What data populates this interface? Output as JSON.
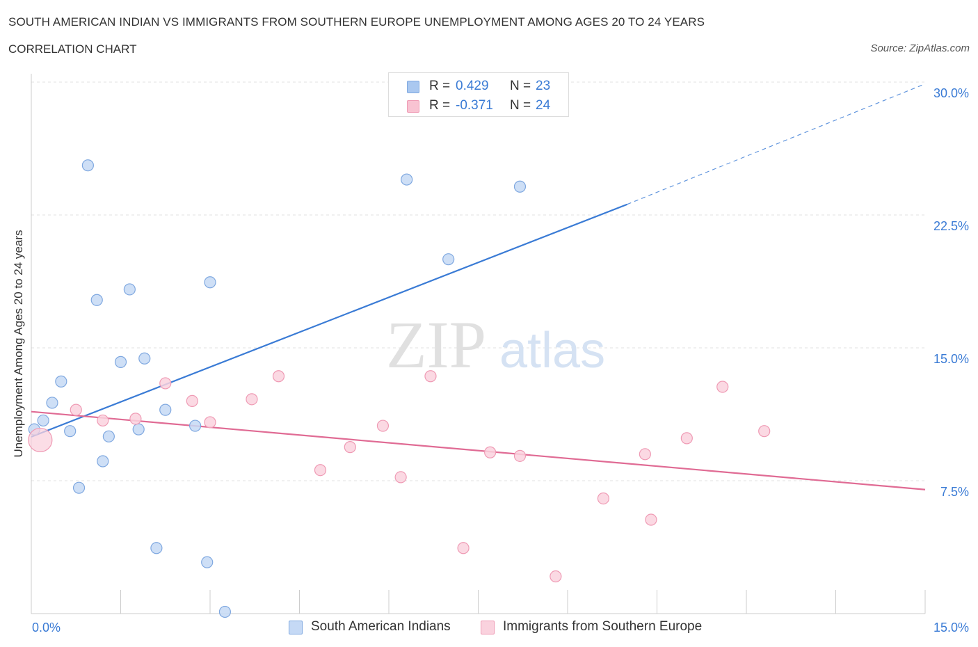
{
  "header": {
    "title": "SOUTH AMERICAN INDIAN VS IMMIGRANTS FROM SOUTHERN EUROPE UNEMPLOYMENT AMONG AGES 20 TO 24 YEARS",
    "subtitle": "CORRELATION CHART",
    "source": "Source: ZipAtlas.com"
  },
  "legend": {
    "rows": [
      {
        "r_label": "R =",
        "r_value": "0.429",
        "n_label": "N =",
        "n_value": "23",
        "color": "#aac8f0",
        "border": "#7fa8e0"
      },
      {
        "r_label": "R =",
        "r_value": "-0.371",
        "n_label": "N =",
        "n_value": "24",
        "color": "#f8c3d2",
        "border": "#ef9ab4"
      }
    ]
  },
  "bottom_legend": [
    {
      "label": "South American Indians",
      "color": "#c5d9f5",
      "border": "#7fa8e0"
    },
    {
      "label": "Immigrants from Southern Europe",
      "color": "#fad2de",
      "border": "#ef9ab4"
    }
  ],
  "watermark": {
    "zip": "ZIP",
    "atlas": "atlas"
  },
  "chart_data": {
    "type": "scatter",
    "title": "SOUTH AMERICAN INDIAN VS IMMIGRANTS FROM SOUTHERN EUROPE UNEMPLOYMENT AMONG AGES 20 TO 24 YEARS",
    "subtitle": "CORRELATION CHART",
    "xlabel": "",
    "ylabel": "Unemployment Among Ages 20 to 24 years",
    "xlim": [
      0,
      15
    ],
    "ylim": [
      0,
      30
    ],
    "x_tick_labels": [
      "0.0%",
      "15.0%"
    ],
    "y_ticks": [
      7.5,
      15,
      22.5,
      30
    ],
    "y_tick_labels": [
      "7.5%",
      "15.0%",
      "22.5%",
      "30.0%"
    ],
    "grid": true,
    "legend_position": "top-center",
    "series": [
      {
        "name": "South American Indians",
        "color": "#3a7bd5",
        "fill": "#c5d9f5",
        "stroke": "#7fa8e0",
        "points": [
          {
            "x": 0.05,
            "y": 10.4
          },
          {
            "x": 0.2,
            "y": 10.9
          },
          {
            "x": 0.35,
            "y": 11.9
          },
          {
            "x": 0.5,
            "y": 13.1
          },
          {
            "x": 0.65,
            "y": 10.3
          },
          {
            "x": 0.8,
            "y": 7.1
          },
          {
            "x": 0.95,
            "y": 25.3
          },
          {
            "x": 1.1,
            "y": 17.7
          },
          {
            "x": 1.2,
            "y": 8.6
          },
          {
            "x": 1.3,
            "y": 10.0
          },
          {
            "x": 1.5,
            "y": 14.2
          },
          {
            "x": 1.65,
            "y": 18.3
          },
          {
            "x": 1.8,
            "y": 10.4
          },
          {
            "x": 1.9,
            "y": 14.4
          },
          {
            "x": 2.1,
            "y": 3.7
          },
          {
            "x": 2.25,
            "y": 11.5
          },
          {
            "x": 2.75,
            "y": 10.6
          },
          {
            "x": 2.95,
            "y": 2.9
          },
          {
            "x": 3.0,
            "y": 18.7
          },
          {
            "x": 3.25,
            "y": 0.1
          },
          {
            "x": 6.3,
            "y": 24.5
          },
          {
            "x": 7.0,
            "y": 20.0
          },
          {
            "x": 8.2,
            "y": 24.1
          }
        ],
        "trend": {
          "x0": 0,
          "y0": 9.98,
          "x1": 10.0,
          "y1": 23.1,
          "dash_to_x": 15.0,
          "dash_to_y": 29.9
        }
      },
      {
        "name": "Immigrants from Southern Europe",
        "color": "#e06b94",
        "fill": "#fad2de",
        "stroke": "#ef9ab4",
        "points": [
          {
            "x": 0.15,
            "y": 9.8,
            "large": true
          },
          {
            "x": 0.75,
            "y": 11.5
          },
          {
            "x": 1.2,
            "y": 10.9
          },
          {
            "x": 1.75,
            "y": 11.0
          },
          {
            "x": 2.25,
            "y": 13.0
          },
          {
            "x": 2.7,
            "y": 12.0
          },
          {
            "x": 3.0,
            "y": 10.8
          },
          {
            "x": 3.7,
            "y": 12.1
          },
          {
            "x": 4.15,
            "y": 13.4
          },
          {
            "x": 4.85,
            "y": 8.1
          },
          {
            "x": 5.35,
            "y": 9.4
          },
          {
            "x": 5.9,
            "y": 10.6
          },
          {
            "x": 6.2,
            "y": 7.7
          },
          {
            "x": 6.7,
            "y": 13.4
          },
          {
            "x": 7.25,
            "y": 3.7
          },
          {
            "x": 7.7,
            "y": 9.1
          },
          {
            "x": 8.2,
            "y": 8.9
          },
          {
            "x": 8.8,
            "y": 2.1
          },
          {
            "x": 9.6,
            "y": 6.5
          },
          {
            "x": 10.3,
            "y": 9.0
          },
          {
            "x": 10.4,
            "y": 5.3
          },
          {
            "x": 11.0,
            "y": 9.9
          },
          {
            "x": 11.6,
            "y": 12.8
          },
          {
            "x": 12.3,
            "y": 10.3
          }
        ],
        "trend": {
          "x0": 0,
          "y0": 11.4,
          "x1": 15.0,
          "y1": 7.0
        }
      }
    ]
  }
}
